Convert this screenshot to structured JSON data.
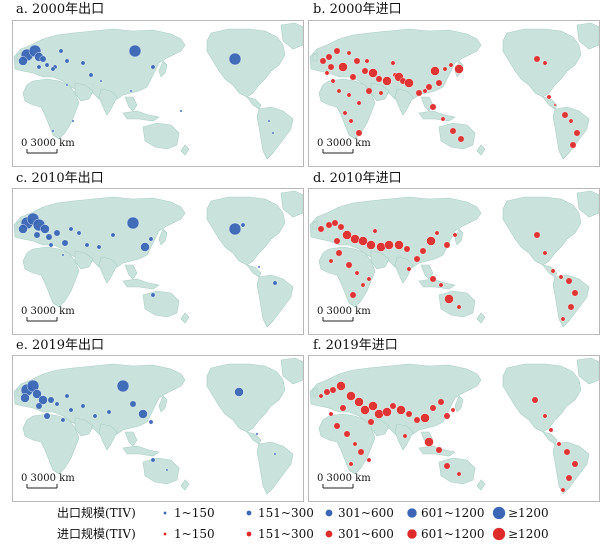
{
  "panels": [
    {
      "title": "a. 2000年出口",
      "type": "export",
      "scale_label": "0 3000 km"
    },
    {
      "title": "b. 2000年进口",
      "type": "import",
      "scale_label": "0 3000 km"
    },
    {
      "title": "c. 2010年出口",
      "type": "export",
      "scale_label": "0 3000 km"
    },
    {
      "title": "d. 2010年进口",
      "type": "import",
      "scale_label": "0 3000 km"
    },
    {
      "title": "e. 2019年出口",
      "type": "export",
      "scale_label": "0 3000 km"
    },
    {
      "title": "f. 2019年进口",
      "type": "import",
      "scale_label": "0 3000 km"
    }
  ],
  "legend": {
    "export_label": "出口规模(TIV)",
    "import_label": "进口规模(TIV)",
    "classes": [
      "1~150",
      "151~300",
      "301~600",
      "601~1200",
      "≥1200"
    ]
  },
  "colors": {
    "ocean": "#ffffff",
    "land": "#c9e3dc",
    "land_edge": "#a9cfc5",
    "export": "#3a66b5",
    "import": "#df2a2a",
    "frame": "#b9b9b9"
  }
}
